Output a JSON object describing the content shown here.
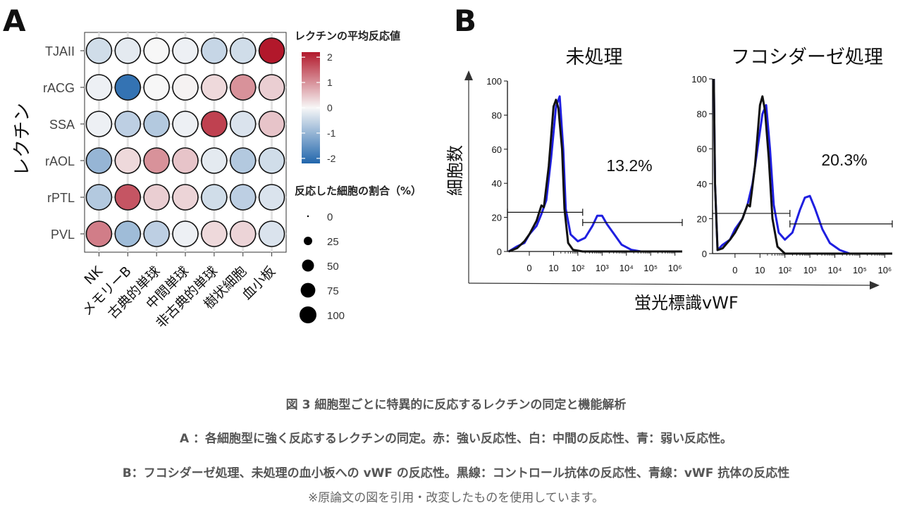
{
  "colors": {
    "low": "#2166ac",
    "mid": "#f7f7f7",
    "high": "#b2182b",
    "control": "#111111",
    "vwf": "#1f1fe0"
  },
  "chart_data": [
    {
      "type": "dotplot-heatmap",
      "panel_label": "A",
      "rows": [
        "TJAII",
        "rACG",
        "SSA",
        "rAOL",
        "rPTL",
        "PVL"
      ],
      "columns": [
        "NK",
        "メモリーB",
        "古典的単球",
        "中間単球",
        "非古典的単球",
        "樹状細胞",
        "血小板"
      ],
      "ylabel": "レクチン",
      "color_legend_title": "レクチンの平均反応値",
      "color_ticks": [
        "2",
        "1",
        "0",
        "-1",
        "-2"
      ],
      "color_range": [
        -2.2,
        2.2
      ],
      "size_legend_title": "反応した細胞の割合（%）",
      "size_ticks": [
        "0",
        "25",
        "50",
        "75",
        "100"
      ],
      "values": [
        [
          -0.4,
          -0.2,
          0.0,
          -0.1,
          -0.5,
          -0.4,
          2.2
        ],
        [
          -0.1,
          -2.0,
          0.0,
          0.05,
          0.3,
          1.0,
          0.4
        ],
        [
          -0.1,
          -0.6,
          -0.7,
          -0.1,
          1.8,
          -0.3,
          0.5
        ],
        [
          -1.0,
          0.3,
          1.0,
          0.5,
          -0.2,
          -0.7,
          -0.4
        ],
        [
          -0.7,
          1.6,
          0.4,
          0.35,
          -0.4,
          -0.6,
          -0.3
        ],
        [
          1.2,
          -0.9,
          -0.6,
          -0.1,
          0.3,
          0.35,
          -0.3
        ]
      ],
      "percent_responding": [
        [
          100,
          100,
          100,
          100,
          100,
          100,
          100
        ],
        [
          100,
          100,
          100,
          100,
          100,
          100,
          100
        ],
        [
          100,
          100,
          100,
          100,
          100,
          100,
          100
        ],
        [
          100,
          100,
          100,
          100,
          100,
          100,
          100
        ],
        [
          100,
          100,
          100,
          100,
          100,
          100,
          100
        ],
        [
          100,
          100,
          100,
          100,
          100,
          100,
          100
        ]
      ]
    },
    {
      "type": "histogram-overlay",
      "panel_label": "B",
      "ylabel": "細胞数",
      "xlabel": "蛍光標識vWF",
      "x_tick_labels": [
        "0",
        "10",
        "10²",
        "10³",
        "10⁴",
        "10⁵",
        "10⁶"
      ],
      "x_tick_values": [
        0,
        1,
        2,
        3,
        4,
        5,
        6
      ],
      "y_tick_labels": [
        "0",
        "20",
        "40",
        "60",
        "80",
        "100"
      ],
      "y_tick_values": [
        0,
        20,
        40,
        60,
        80,
        100
      ],
      "xlim": [
        -0.9,
        6.3
      ],
      "ylim": [
        0,
        100
      ],
      "series_names": [
        "コントロール抗体",
        "vWF抗体"
      ],
      "panels": [
        {
          "title": "未処理",
          "gate_percent": "13.2%",
          "negative_gate": {
            "from": -0.9,
            "to": 2.2,
            "y": 23
          },
          "positive_gate": {
            "from": 2.2,
            "to": 6.3,
            "y": 17
          },
          "control_curve": {
            "x": [
              -0.85,
              -0.5,
              -0.2,
              0.0,
              0.3,
              0.5,
              0.6,
              0.8,
              1.0,
              1.1,
              1.2,
              1.35,
              1.45,
              1.6,
              1.8,
              2.2,
              6.3
            ],
            "y": [
              0,
              2,
              6,
              10,
              18,
              27,
              26,
              50,
              85,
              89,
              84,
              60,
              25,
              5,
              1,
              0,
              0
            ]
          },
          "vwf_curve": {
            "x": [
              -0.85,
              -0.5,
              -0.2,
              0.0,
              0.3,
              0.5,
              0.7,
              0.9,
              1.1,
              1.25,
              1.4,
              1.5,
              1.7,
              2.0,
              2.3,
              2.6,
              2.8,
              3.0,
              3.2,
              3.5,
              3.8,
              4.2,
              4.6,
              6.3
            ],
            "y": [
              0,
              3,
              5,
              10,
              15,
              22,
              30,
              55,
              85,
              91,
              60,
              25,
              10,
              6,
              8,
              15,
              21,
              21,
              16,
              10,
              4,
              1,
              0,
              0
            ]
          }
        },
        {
          "title": "フコシダーゼ処理",
          "gate_percent": "20.3%",
          "negative_gate": {
            "from": -0.9,
            "to": 2.2,
            "y": 23
          },
          "positive_gate": {
            "from": 2.2,
            "to": 6.3,
            "y": 17
          },
          "control_curve": {
            "x": [
              -0.85,
              -0.8,
              -0.7,
              -0.5,
              -0.2,
              0.0,
              0.3,
              0.5,
              0.6,
              0.8,
              1.0,
              1.1,
              1.2,
              1.35,
              1.5,
              1.7,
              2.0,
              6.3
            ],
            "y": [
              100,
              40,
              2,
              3,
              8,
              12,
              20,
              28,
              27,
              50,
              85,
              90,
              82,
              55,
              20,
              4,
              0,
              0
            ]
          },
          "vwf_curve": {
            "x": [
              -0.85,
              -0.8,
              -0.7,
              -0.5,
              -0.2,
              0.0,
              0.3,
              0.5,
              0.7,
              0.9,
              1.1,
              1.25,
              1.4,
              1.55,
              1.75,
              2.0,
              2.3,
              2.6,
              2.8,
              3.0,
              3.2,
              3.5,
              3.8,
              4.2,
              4.6,
              6.3
            ],
            "y": [
              100,
              40,
              2,
              5,
              8,
              14,
              20,
              28,
              40,
              60,
              80,
              85,
              60,
              28,
              12,
              8,
              12,
              25,
              32,
              33,
              26,
              14,
              6,
              2,
              0,
              0
            ]
          }
        }
      ]
    }
  ],
  "caption": {
    "title": "図 3  細胞型ごとに特異的に反応するレクチンの同定と機能解析",
    "line_a": "A ：各細胞型に強く反応するレクチンの同定。赤：強い反応性、白：中間の反応性、青：弱い反応性。",
    "line_b": "B：フコシダーゼ処理、未処理の血小板への vWF の反応性。黒線：コントロール抗体の反応性、青線：vWF 抗体の反応性",
    "note": "※原論文の図を引用・改変したものを使用しています。"
  }
}
